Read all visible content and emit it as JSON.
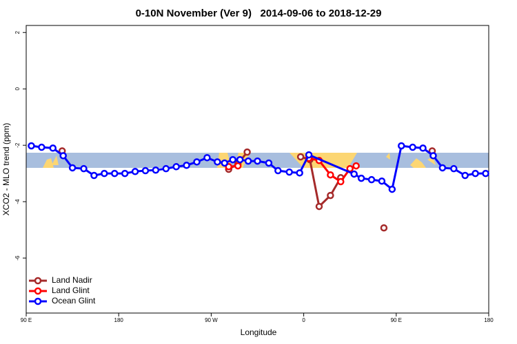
{
  "chart_data": {
    "type": "line",
    "title": "0-10N November (Ver 9)   2014-09-06 to 2018-12-29",
    "xlabel": "Longitude",
    "ylabel": "XCO2 - MLO trend (ppm)",
    "xlim": [
      90,
      540
    ],
    "xticks": [
      {
        "value": 90,
        "label": "90 E"
      },
      {
        "value": 180,
        "label": "180"
      },
      {
        "value": 270,
        "label": "90 W"
      },
      {
        "value": 360,
        "label": "0"
      },
      {
        "value": 450,
        "label": "90 E"
      },
      {
        "value": 540,
        "label": "180"
      }
    ],
    "ylim": [
      -7.95,
      2.25
    ],
    "yticks": [
      2,
      0,
      -2,
      -4,
      -6
    ],
    "legend": "lower left",
    "series": [
      {
        "name": "Land Nadir",
        "color": "#a52a2a",
        "x": [
          125,
          null,
          287,
          296,
          305,
          null,
          357,
          366,
          375,
          386,
          396,
          null,
          438,
          null,
          485
        ],
        "values": [
          -2.2,
          null,
          -2.85,
          -2.66,
          -2.24,
          null,
          -2.41,
          -2.51,
          -4.17,
          -3.78,
          -3.15,
          null,
          -4.93,
          null,
          -2.2
        ]
      },
      {
        "name": "Land Glint",
        "color": "#ff0000",
        "x": [
          287,
          296,
          null,
          365,
          375,
          386,
          396,
          405,
          411
        ],
        "values": [
          -2.76,
          -2.73,
          null,
          -2.46,
          -2.54,
          -3.05,
          -3.29,
          -2.83,
          -2.73
        ]
      },
      {
        "name": "Ocean Glint",
        "color": "#0000ff",
        "x": [
          95,
          105,
          116,
          126,
          135,
          146,
          156,
          166,
          176,
          186,
          196,
          206,
          216,
          226,
          236,
          246,
          256,
          266,
          276,
          283,
          291,
          298,
          306,
          315,
          326,
          335,
          346,
          356,
          365,
          409,
          416,
          426,
          436,
          446,
          455,
          466,
          476,
          486,
          495,
          506,
          517,
          527,
          537
        ],
        "values": [
          -2.02,
          -2.07,
          -2.1,
          -2.37,
          -2.8,
          -2.83,
          -3.07,
          -3.0,
          -3.0,
          -3.0,
          -2.93,
          -2.9,
          -2.88,
          -2.83,
          -2.76,
          -2.71,
          -2.59,
          -2.44,
          -2.59,
          -2.63,
          -2.51,
          -2.51,
          -2.56,
          -2.56,
          -2.63,
          -2.9,
          -2.95,
          -2.98,
          -2.34,
          -3.02,
          -3.17,
          -3.22,
          -3.27,
          -3.56,
          -2.02,
          -2.07,
          -2.1,
          -2.37,
          -2.8,
          -2.83,
          -3.07,
          -3.0,
          -3.0
        ]
      }
    ]
  }
}
